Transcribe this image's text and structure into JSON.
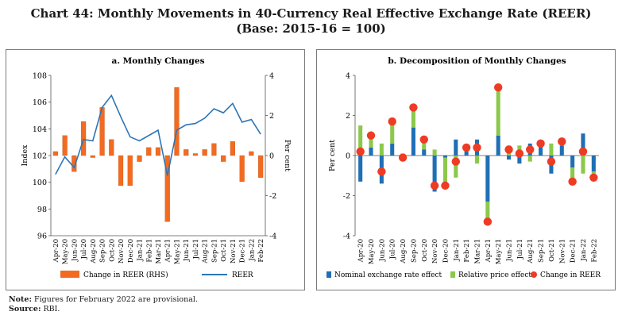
{
  "title_line1": "Chart 44: Monthly Movements in 40-Currency Real Effective Exchange Rate (REER)",
  "title_line2": "(Base: 2015-16 = 100)",
  "months": [
    "Apr-20",
    "May-20",
    "Jun-20",
    "Jul-20",
    "Aug-20",
    "Sep-20",
    "Oct-20",
    "Nov-20",
    "Dec-20",
    "Jan-21",
    "Feb-21",
    "Mar-21",
    "Apr-21",
    "May-21",
    "Jun-21",
    "Jul-21",
    "Aug-21",
    "Sep-21",
    "Oct-21",
    "Nov-21",
    "Dec-21",
    "Jan-22",
    "Feb-22"
  ],
  "chart_data": [
    {
      "type": "bar+line",
      "title": "a. Monthly Changes",
      "ylabel": "Index",
      "y2label": "Per cent",
      "ylim": [
        96,
        108
      ],
      "y_ticks": [
        "96",
        "98",
        "100",
        "102",
        "104",
        "106",
        "108"
      ],
      "y2lim": [
        -4,
        4
      ],
      "y2_ticks": [
        "-4",
        "-2",
        "0",
        "2",
        "4"
      ],
      "categories": [
        "Apr-20",
        "May-20",
        "Jun-20",
        "Jul-20",
        "Aug-20",
        "Sep-20",
        "Oct-20",
        "Nov-20",
        "Dec-20",
        "Jan-21",
        "Feb-21",
        "Mar-21",
        "Apr-21",
        "May-21",
        "Jun-21",
        "Jul-21",
        "Aug-21",
        "Sep-21",
        "Oct-21",
        "Nov-21",
        "Dec-21",
        "Jan-22",
        "Feb-22"
      ],
      "series": [
        {
          "name": "Change in REER (RHS)",
          "kind": "bar",
          "axis": "right",
          "color": "#f26b21",
          "values": [
            0.2,
            1.0,
            -0.8,
            1.7,
            -0.1,
            2.4,
            0.8,
            -1.5,
            -1.5,
            -0.3,
            0.4,
            0.4,
            -3.3,
            3.4,
            0.3,
            0.1,
            0.3,
            0.6,
            -0.3,
            0.7,
            -1.3,
            0.2,
            -1.1
          ]
        },
        {
          "name": "REER",
          "kind": "line",
          "axis": "left",
          "color": "#2e75b6",
          "values": [
            100.6,
            101.9,
            101.1,
            103.2,
            103.1,
            105.6,
            106.5,
            104.9,
            103.4,
            103.1,
            103.5,
            103.9,
            100.5,
            103.9,
            104.3,
            104.4,
            104.8,
            105.5,
            105.2,
            105.9,
            104.5,
            104.7,
            103.6
          ]
        }
      ],
      "legend": [
        "Change in REER (RHS)",
        "REER"
      ]
    },
    {
      "type": "stacked-bar+scatter",
      "title": "b. Decomposition of Monthly Changes",
      "ylabel": "Per cent",
      "ylim": [
        -4,
        4
      ],
      "y_ticks": [
        "-4",
        "-2",
        "0",
        "2",
        "4"
      ],
      "categories": [
        "Apr-20",
        "May-20",
        "Jun-20",
        "Jul-20",
        "Aug-20",
        "Sep-20",
        "Oct-20",
        "Nov-20",
        "Dec-20",
        "Jan-21",
        "Feb-21",
        "Mar-21",
        "Apr-21",
        "May-21",
        "Jun-21",
        "Jul-21",
        "Aug-21",
        "Sep-21",
        "Oct-21",
        "Nov-21",
        "Dec-21",
        "Jan-22",
        "Feb-22"
      ],
      "series": [
        {
          "name": "Nominal exchange rate effect",
          "kind": "bar",
          "color": "#1f6fb5",
          "values": [
            -1.3,
            0.4,
            -1.4,
            0.6,
            -0.2,
            1.4,
            0.3,
            -1.8,
            -0.1,
            0.8,
            0.4,
            0.8,
            -2.3,
            1.0,
            -0.2,
            -0.4,
            0.6,
            0.5,
            -0.9,
            0.5,
            -0.6,
            1.1,
            -0.8
          ]
        },
        {
          "name": "Relative price effect",
          "kind": "bar",
          "color": "#8cc84b",
          "values": [
            1.5,
            0.6,
            0.6,
            1.1,
            0.1,
            1.0,
            0.5,
            0.3,
            -1.4,
            -1.1,
            0.0,
            -0.4,
            -1.0,
            2.4,
            0.5,
            0.5,
            -0.3,
            0.1,
            0.6,
            0.2,
            -0.7,
            -0.9,
            -0.3
          ]
        },
        {
          "name": "Change in REER",
          "kind": "dot",
          "color": "#ee3b24",
          "values": [
            0.2,
            1.0,
            -0.8,
            1.7,
            -0.1,
            2.4,
            0.8,
            -1.5,
            -1.5,
            -0.3,
            0.4,
            0.4,
            -3.3,
            3.4,
            0.3,
            0.1,
            0.3,
            0.6,
            -0.3,
            0.7,
            -1.3,
            0.2,
            -1.1
          ]
        }
      ],
      "legend": [
        "Nominal exchange rate effect",
        "Relative price effect",
        "Change in REER"
      ]
    }
  ],
  "note_label": "Note:",
  "note_text": "Figures for February 2022 are provisional.",
  "source_label": "Source:",
  "source_text": "RBI."
}
